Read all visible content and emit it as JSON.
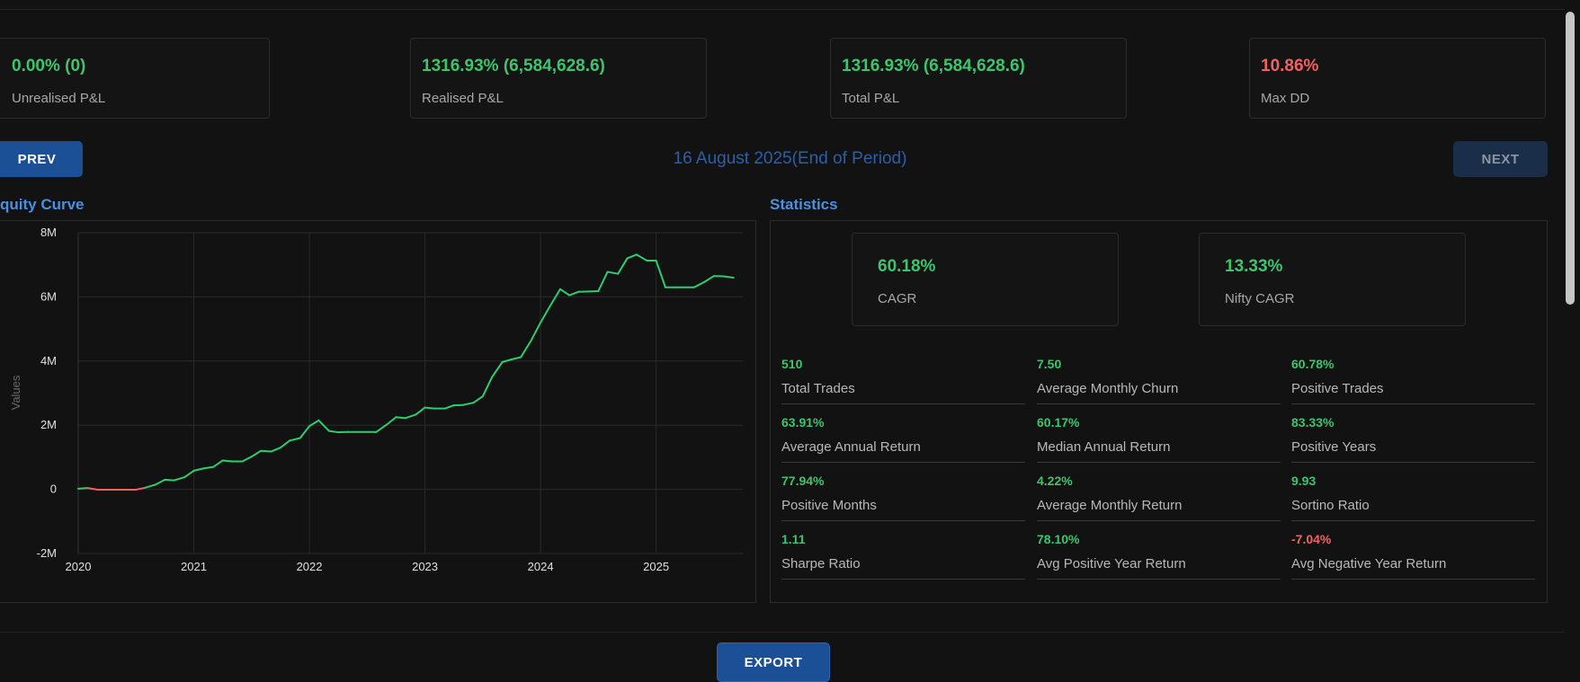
{
  "summary_cards": [
    {
      "value": "0.00% (0)",
      "label": "Unrealised P&L",
      "color": "#3ec46d"
    },
    {
      "value": "1316.93% (6,584,628.6)",
      "label": "Realised P&L",
      "color": "#3ec46d"
    },
    {
      "value": "1316.93% (6,584,628.6)",
      "label": "Total P&L",
      "color": "#3ec46d"
    },
    {
      "value": "10.86%",
      "label": "Max DD",
      "color": "#f06262"
    }
  ],
  "nav": {
    "prev_label": "PREV",
    "next_label": "NEXT",
    "period": "16 August 2025(End of Period)"
  },
  "equity": {
    "title": "quity Curve"
  },
  "statistics": {
    "title": "Statistics",
    "cagr": {
      "value": "60.18%",
      "label": "CAGR"
    },
    "nifty_cagr": {
      "value": "13.33%",
      "label": "Nifty CAGR"
    },
    "items": [
      {
        "value": "510",
        "label": "Total Trades",
        "color": "#3ec46d"
      },
      {
        "value": "7.50",
        "label": "Average Monthly Churn",
        "color": "#3ec46d"
      },
      {
        "value": "60.78%",
        "label": "Positive Trades",
        "color": "#3ec46d"
      },
      {
        "value": "63.91%",
        "label": "Average Annual Return",
        "color": "#3ec46d"
      },
      {
        "value": "60.17%",
        "label": "Median Annual Return",
        "color": "#3ec46d"
      },
      {
        "value": "83.33%",
        "label": "Positive Years",
        "color": "#3ec46d"
      },
      {
        "value": "77.94%",
        "label": "Positive Months",
        "color": "#3ec46d"
      },
      {
        "value": "4.22%",
        "label": "Average Monthly Return",
        "color": "#3ec46d"
      },
      {
        "value": "9.93",
        "label": "Sortino Ratio",
        "color": "#3ec46d"
      },
      {
        "value": "1.11",
        "label": "Sharpe Ratio",
        "color": "#3ec46d"
      },
      {
        "value": "78.10%",
        "label": "Avg Positive Year Return",
        "color": "#3ec46d"
      },
      {
        "value": "-7.04%",
        "label": "Avg Negative Year Return",
        "color": "#f06262"
      }
    ]
  },
  "export_label": "EXPORT",
  "chart_data": {
    "type": "line",
    "title": "",
    "xlabel": "",
    "ylabel": "Values",
    "xlim": [
      2020.0,
      2025.75
    ],
    "ylim": [
      -2000000,
      8000000
    ],
    "x_ticks": [
      2020,
      2021,
      2022,
      2023,
      2024,
      2025
    ],
    "x_tick_labels": [
      "2020",
      "2021",
      "2022",
      "2023",
      "2024",
      "2025"
    ],
    "y_ticks": [
      -2000000,
      0,
      2000000,
      4000000,
      6000000,
      8000000
    ],
    "y_tick_labels": [
      "-2M",
      "0",
      "2M",
      "4M",
      "6M",
      "8M"
    ],
    "grid": true,
    "series": [
      {
        "color_positive": "#2ecc71",
        "color_negative": "#f06262",
        "x": [
          2020.0,
          2020.08,
          2020.17,
          2020.25,
          2020.33,
          2020.42,
          2020.5,
          2020.58,
          2020.67,
          2020.75,
          2020.83,
          2020.92,
          2021.0,
          2021.08,
          2021.17,
          2021.25,
          2021.33,
          2021.42,
          2021.5,
          2021.58,
          2021.67,
          2021.75,
          2021.83,
          2021.92,
          2022.0,
          2022.08,
          2022.17,
          2022.25,
          2022.33,
          2022.42,
          2022.5,
          2022.58,
          2022.67,
          2022.75,
          2022.83,
          2022.92,
          2023.0,
          2023.08,
          2023.17,
          2023.25,
          2023.33,
          2023.42,
          2023.5,
          2023.58,
          2023.67,
          2023.75,
          2023.83,
          2023.92,
          2024.0,
          2024.08,
          2024.17,
          2024.25,
          2024.33,
          2024.42,
          2024.5,
          2024.58,
          2024.67,
          2024.75,
          2024.83,
          2024.92,
          2025.0,
          2025.08,
          2025.17,
          2025.25,
          2025.33,
          2025.42,
          2025.5,
          2025.58,
          2025.67
        ],
        "y": [
          20000,
          40000,
          -10000,
          -10000,
          -10000,
          -10000,
          -10000,
          50000,
          150000,
          300000,
          280000,
          380000,
          580000,
          650000,
          700000,
          900000,
          870000,
          870000,
          1020000,
          1200000,
          1180000,
          1300000,
          1520000,
          1600000,
          1970000,
          2150000,
          1820000,
          1780000,
          1790000,
          1790000,
          1790000,
          1790000,
          2020000,
          2250000,
          2220000,
          2330000,
          2550000,
          2520000,
          2520000,
          2620000,
          2630000,
          2700000,
          2900000,
          3500000,
          3970000,
          4050000,
          4120000,
          4650000,
          5200000,
          5700000,
          6240000,
          6050000,
          6160000,
          6170000,
          6180000,
          6780000,
          6720000,
          7200000,
          7320000,
          7130000,
          7130000,
          6300000,
          6300000,
          6300000,
          6300000,
          6470000,
          6650000,
          6640000,
          6600000
        ]
      }
    ]
  }
}
